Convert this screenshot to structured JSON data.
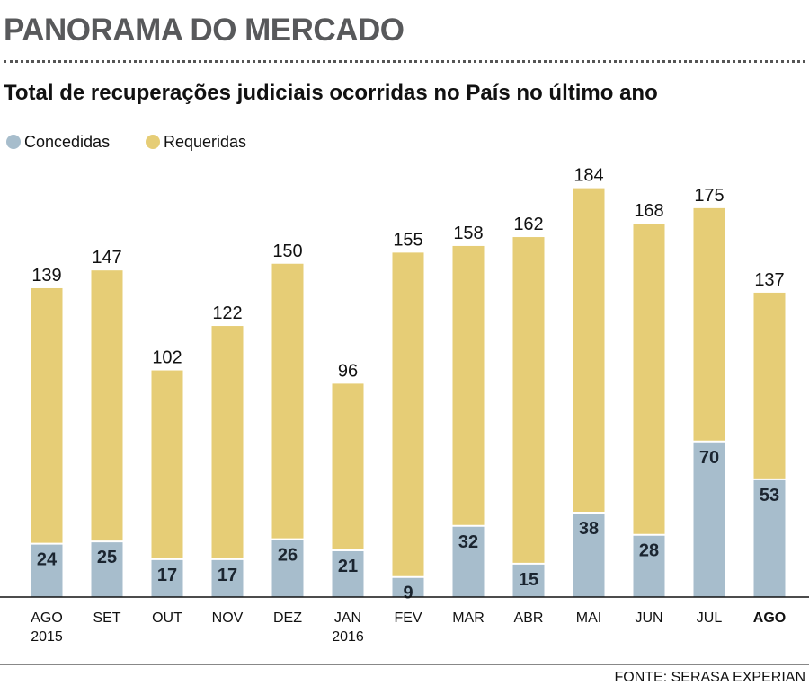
{
  "chart_data": {
    "type": "overlap-bar",
    "header": "PANORAMA DO MERCADO",
    "title": "Total de recuperações judiciais ocorridas no País no último ano",
    "source": "FONTE: SERASA EXPERIAN",
    "categories": [
      "AGO 2015",
      "SET",
      "OUT",
      "NOV",
      "DEZ",
      "JAN 2016",
      "FEV",
      "MAR",
      "ABR",
      "MAI",
      "JUN",
      "JUL",
      "AGO"
    ],
    "series": [
      {
        "name": "Requeridas",
        "color": "#e6cd76",
        "values": [
          139,
          147,
          102,
          122,
          150,
          96,
          155,
          158,
          162,
          184,
          168,
          175,
          137
        ]
      },
      {
        "name": "Concedidas",
        "color": "#a7bdcc",
        "values": [
          24,
          25,
          17,
          17,
          26,
          21,
          9,
          32,
          15,
          38,
          28,
          70,
          53
        ]
      }
    ],
    "ylim": [
      0,
      200
    ]
  }
}
